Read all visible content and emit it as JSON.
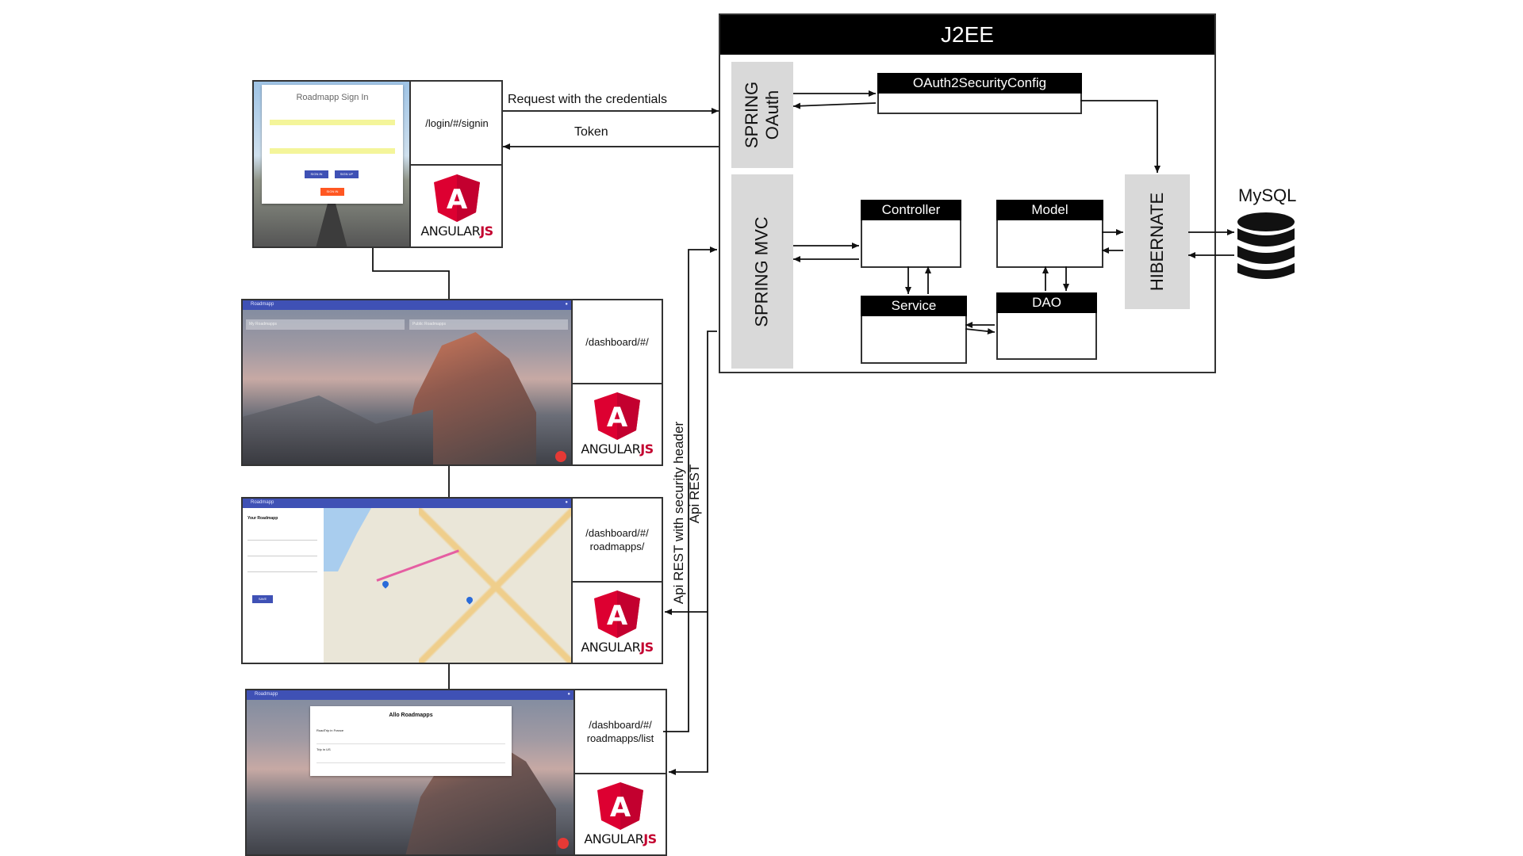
{
  "frontend": {
    "frameworkLogo": {
      "word": "ANGULAR",
      "suffix": "JS",
      "letter": "A"
    },
    "pages": [
      {
        "route": "/login/#/signin",
        "screen": "signin",
        "screenText": {
          "heading": "Roadmapp Sign In",
          "button1": "SIGN IN",
          "button2": "SIGN UP",
          "button3": "SIGN IN"
        }
      },
      {
        "route": "/dashboard/#/",
        "screen": "dashboard",
        "screenText": {
          "appTitle": "Roadmapp",
          "tab1": "My Roadmapps",
          "tab2": "Public Roadmapps"
        }
      },
      {
        "route": "/dashboard/#/\nroadmapps/",
        "screen": "map",
        "screenText": {
          "appTitle": "Roadmapp",
          "panelTitle": "Your Roadmapp",
          "button": "SAVE"
        }
      },
      {
        "route": "/dashboard/#/\nroadmapps/list",
        "screen": "list",
        "screenText": {
          "appTitle": "Roadmapp",
          "listTitle": "Allo Roadmapps",
          "item1": "RoadTrip in France",
          "item2": "Trip in US"
        }
      }
    ]
  },
  "labels": {
    "request": "Request with the credentials",
    "token": "Token",
    "apiSecure": "Api REST with security header",
    "api": "Api REST"
  },
  "backend": {
    "title": "J2EE",
    "springOauth": "SPRING\nOAuth",
    "springMvc": "SPRING MVC",
    "oauthConfig": "OAuth2SecurityConfig",
    "controller": "Controller",
    "model": "Model",
    "service": "Service",
    "dao": "DAO",
    "hibernate": "HIBERNATE"
  },
  "database": {
    "name": "MySQL"
  },
  "colors": {
    "angularRed": "#dd0031",
    "angularDark": "#c3002f",
    "appBar": "#3f51b5",
    "grey": "#d9d9d9"
  }
}
